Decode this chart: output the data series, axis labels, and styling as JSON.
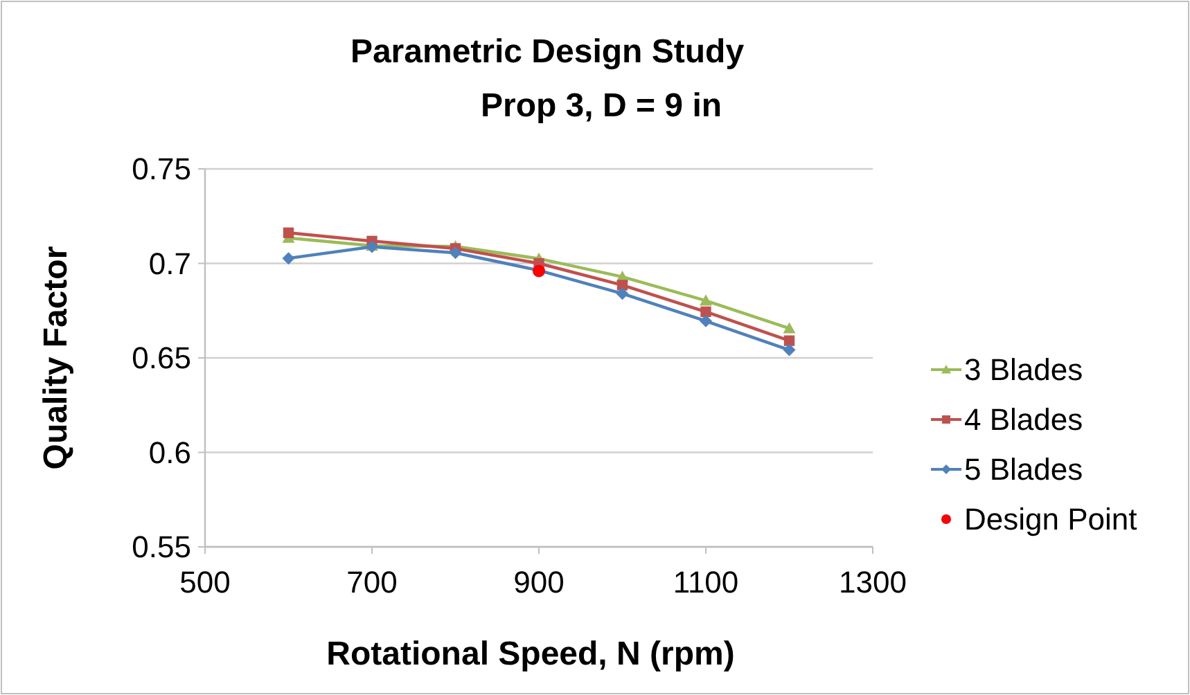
{
  "chart_data": {
    "type": "line",
    "title": "Parametric Design Study",
    "subtitle": "Prop 3, D = 9 in",
    "xlabel": "Rotational Speed, N (rpm)",
    "ylabel": "Quality Factor",
    "x": [
      600,
      700,
      800,
      900,
      1000,
      1100,
      1200
    ],
    "series": [
      {
        "name": "3 Blades",
        "color": "#9bbb59",
        "marker": "triangle",
        "values": [
          0.7135,
          0.7093,
          0.709,
          0.7025,
          0.6929,
          0.6803,
          0.6656
        ]
      },
      {
        "name": "4 Blades",
        "color": "#c0504d",
        "marker": "square",
        "values": [
          0.7162,
          0.7118,
          0.7079,
          0.7,
          0.6885,
          0.6744,
          0.6591
        ]
      },
      {
        "name": "5 Blades",
        "color": "#4f81bd",
        "marker": "diamond",
        "values": [
          0.7027,
          0.7088,
          0.7056,
          0.6963,
          0.684,
          0.6695,
          0.6542
        ]
      },
      {
        "name": "Design Point",
        "type": "scatter",
        "color": "#ff0000",
        "marker": "circle",
        "x": [
          900
        ],
        "values": [
          0.696
        ]
      }
    ],
    "xlim": [
      500,
      1300
    ],
    "xticks": [
      500,
      700,
      900,
      1100,
      1300
    ],
    "ylim": [
      0.55,
      0.75
    ],
    "yticks": [
      0.55,
      0.6,
      0.65,
      0.7,
      0.75
    ],
    "grid": "y",
    "legend": "right"
  }
}
